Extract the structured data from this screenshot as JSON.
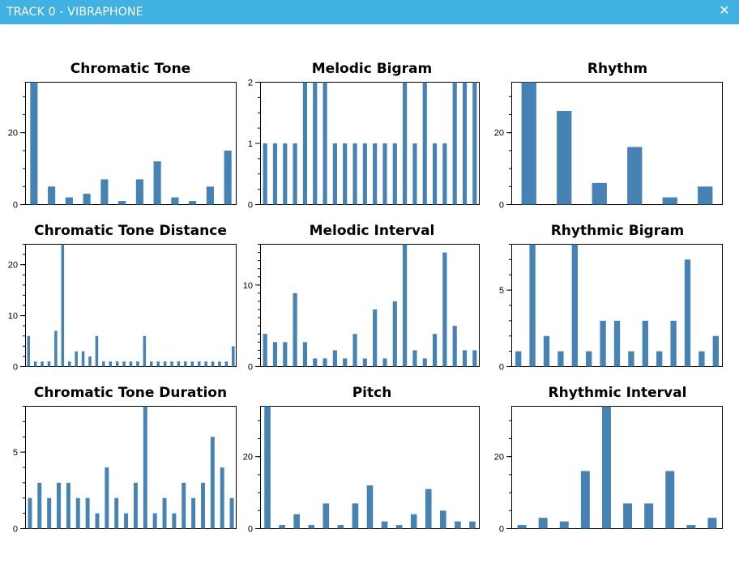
{
  "window": {
    "title": "TRACK 0 - VIBRAPHONE",
    "close_glyph": "✕",
    "accent_color": "#41b1e1"
  },
  "bar_color": "#4682b4",
  "chart_data": [
    {
      "type": "bar",
      "title": "Chromatic Tone",
      "ylim": [
        0,
        34
      ],
      "yticks": [
        0,
        20
      ],
      "values": [
        34,
        5,
        2,
        3,
        7,
        1,
        7,
        12,
        2,
        1,
        5,
        15
      ],
      "grid": false
    },
    {
      "type": "bar",
      "title": "Melodic Bigram",
      "ylim": [
        0,
        2
      ],
      "yticks": [
        0,
        1,
        2
      ],
      "values": [
        1,
        1,
        1,
        1,
        2,
        2,
        2,
        1,
        1,
        1,
        1,
        1,
        1,
        1,
        2,
        1,
        2,
        1,
        1,
        2,
        2,
        2
      ],
      "grid": false
    },
    {
      "type": "bar",
      "title": "Rhythm",
      "ylim": [
        0,
        34
      ],
      "yticks": [
        0,
        20
      ],
      "values": [
        34,
        26,
        6,
        16,
        2,
        5
      ],
      "grid": false
    },
    {
      "type": "bar",
      "title": "Chromatic Tone Distance",
      "ylim": [
        0,
        24
      ],
      "yticks": [
        0,
        10,
        20
      ],
      "values": [
        6,
        1,
        1,
        1,
        7,
        24,
        1,
        3,
        3,
        2,
        6,
        1,
        1,
        1,
        1,
        1,
        1,
        6,
        1,
        1,
        1,
        1,
        1,
        1,
        1,
        1,
        1,
        1,
        1,
        1,
        4
      ],
      "grid": false
    },
    {
      "type": "bar",
      "title": "Melodic Interval",
      "ylim": [
        0,
        15
      ],
      "yticks": [
        0,
        10
      ],
      "values": [
        4,
        3,
        3,
        9,
        3,
        1,
        1,
        2,
        1,
        4,
        1,
        7,
        1,
        8,
        15,
        2,
        1,
        4,
        14,
        5,
        2,
        2
      ],
      "grid": false
    },
    {
      "type": "bar",
      "title": "Rhythmic Bigram",
      "ylim": [
        0,
        8
      ],
      "yticks": [
        0,
        5
      ],
      "values": [
        1,
        8,
        2,
        1,
        8,
        1,
        3,
        3,
        1,
        3,
        1,
        3,
        7,
        1,
        2
      ],
      "grid": false
    },
    {
      "type": "bar",
      "title": "Chromatic Tone Duration",
      "ylim": [
        0,
        8
      ],
      "yticks": [
        0,
        5
      ],
      "values": [
        2,
        3,
        2,
        3,
        3,
        2,
        2,
        1,
        4,
        2,
        1,
        3,
        8,
        1,
        2,
        1,
        3,
        2,
        3,
        6,
        4,
        2
      ],
      "grid": false
    },
    {
      "type": "bar",
      "title": "Pitch",
      "ylim": [
        0,
        34
      ],
      "yticks": [
        0,
        20
      ],
      "values": [
        34,
        1,
        4,
        1,
        7,
        1,
        7,
        12,
        2,
        1,
        4,
        11,
        5,
        2,
        2
      ],
      "grid": false
    },
    {
      "type": "bar",
      "title": "Rhythmic Interval",
      "ylim": [
        0,
        34
      ],
      "yticks": [
        0,
        20
      ],
      "values": [
        1,
        3,
        2,
        16,
        34,
        7,
        7,
        16,
        1,
        3
      ],
      "grid": false
    }
  ]
}
